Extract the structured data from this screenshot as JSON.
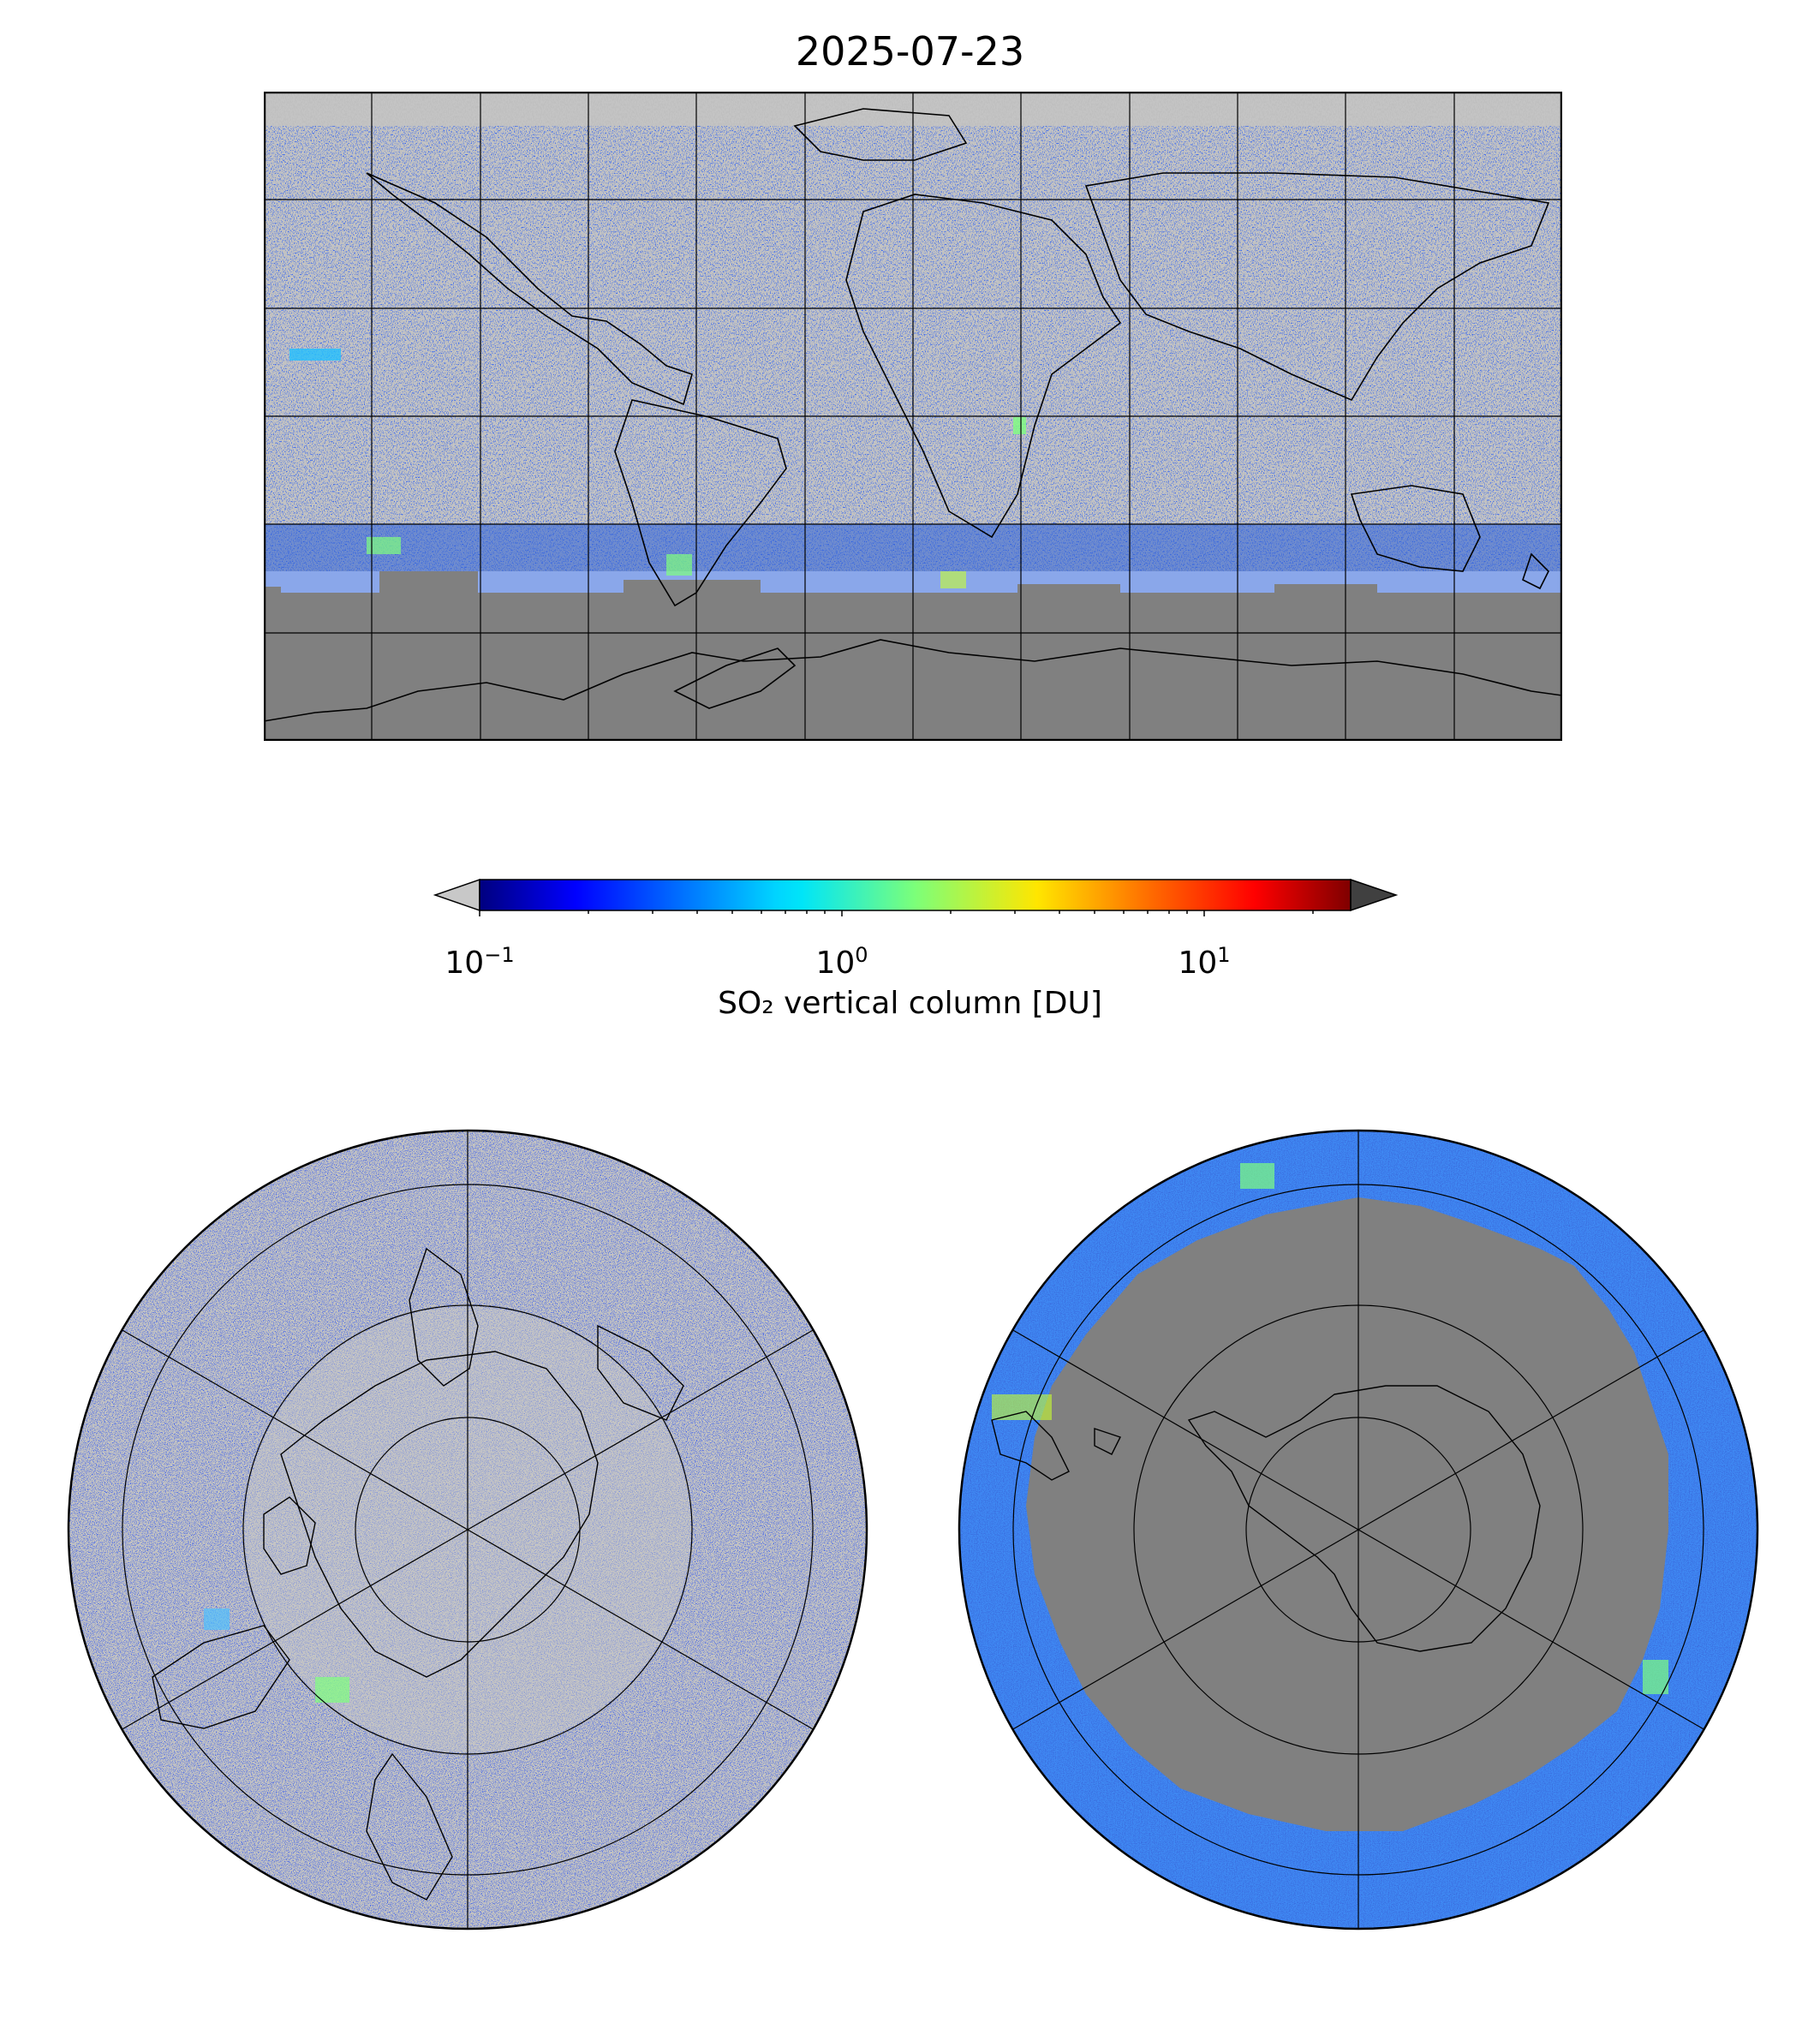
{
  "title": "2025-07-23",
  "colorbar": {
    "label": "SO₂ vertical column [DU]",
    "scale": "log",
    "range": [
      0.1,
      25
    ],
    "colormap": "jet",
    "extend": "both",
    "under_color": "#c8c8c8",
    "over_color": "#404040",
    "ticks": [
      {
        "value": 0.1,
        "base": "10",
        "exp": "−1"
      },
      {
        "value": 1,
        "base": "10",
        "exp": "0"
      },
      {
        "value": 10,
        "base": "10",
        "exp": "1"
      }
    ]
  },
  "maps": [
    {
      "name": "global",
      "projection": "plate-carree",
      "lon_range": [
        -180,
        180
      ],
      "lat_range": [
        -90,
        90
      ],
      "gridline_lon_step": 30,
      "gridline_lat_step": 30
    },
    {
      "name": "north-pole",
      "projection": "north-polar-stereographic",
      "boundary_lat": 30,
      "gridline_lat": [
        45,
        60,
        75
      ],
      "gridline_lon_step": 60
    },
    {
      "name": "south-pole",
      "projection": "south-polar-stereographic",
      "boundary_lat": -30,
      "gridline_lat": [
        -45,
        -60,
        -75
      ],
      "gridline_lon_step": 60
    }
  ],
  "colors": {
    "no_data": "#808080",
    "below_range": "#c8c8c8",
    "low_value": "#0000cc",
    "mid_value": "#22a0ff",
    "high_value": "#7fff7f"
  }
}
